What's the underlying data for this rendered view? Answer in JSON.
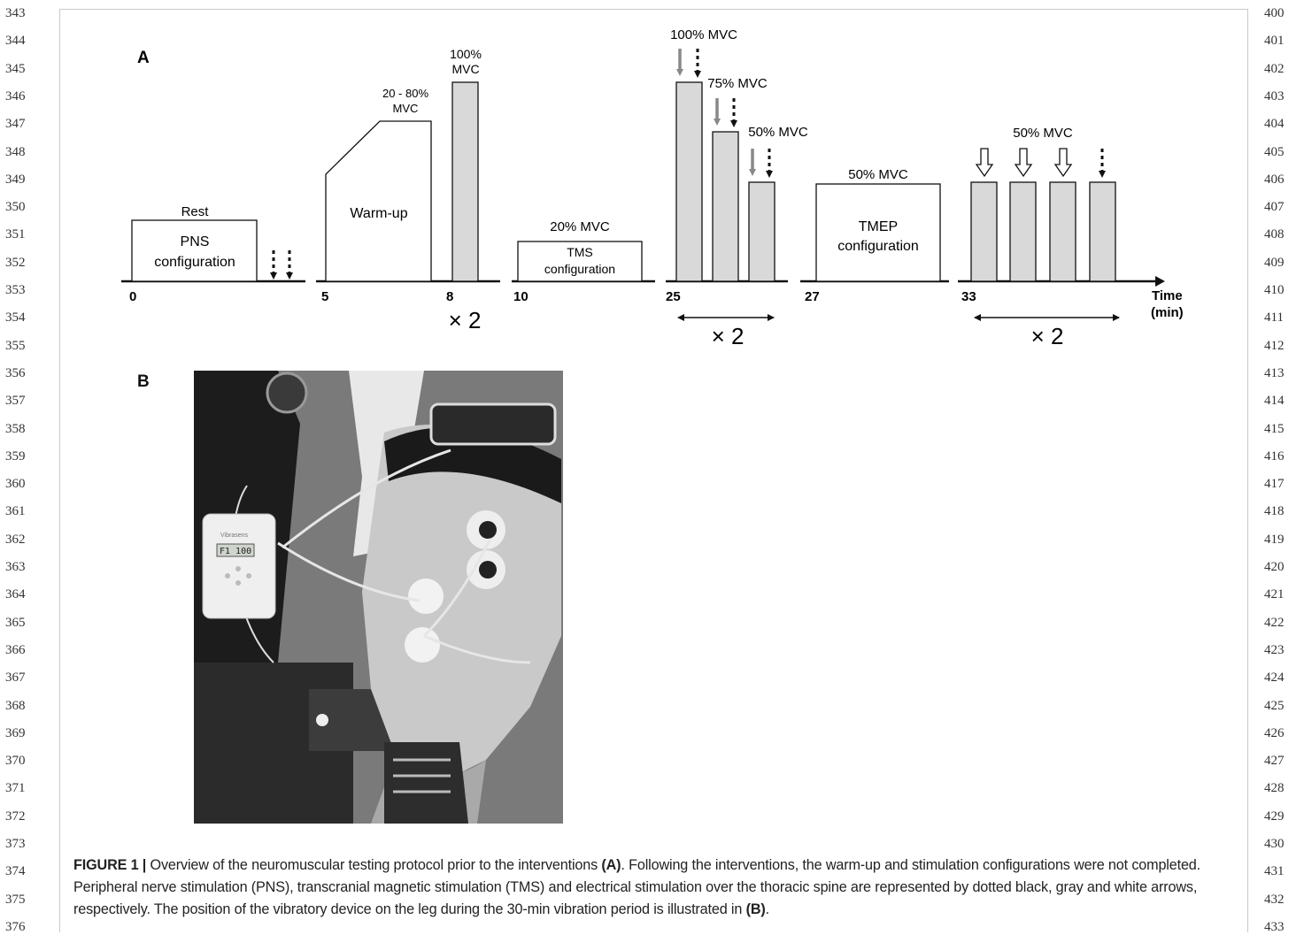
{
  "line_numbers": {
    "left": [
      "343",
      "344",
      "345",
      "346",
      "347",
      "348",
      "349",
      "350",
      "351",
      "352",
      "353",
      "354",
      "355",
      "356",
      "357",
      "358",
      "359",
      "360",
      "361",
      "362",
      "363",
      "364",
      "365",
      "366",
      "367",
      "368",
      "369",
      "370",
      "371",
      "372",
      "373",
      "374",
      "375",
      "376"
    ],
    "right": [
      "400",
      "401",
      "402",
      "403",
      "404",
      "405",
      "406",
      "407",
      "408",
      "409",
      "410",
      "411",
      "412",
      "413",
      "414",
      "415",
      "416",
      "417",
      "418",
      "419",
      "420",
      "421",
      "422",
      "423",
      "424",
      "425",
      "426",
      "427",
      "428",
      "429",
      "430",
      "431",
      "432",
      "433"
    ]
  },
  "panel_a": {
    "label": "A",
    "axis": {
      "ticks": [
        "0",
        "5",
        "8",
        "10",
        "25",
        "27",
        "33"
      ],
      "title_line1": "Time",
      "title_line2": "(min)"
    },
    "rest": {
      "label": "Rest",
      "box_line1": "PNS",
      "box_line2": "configuration"
    },
    "warmup": {
      "box": "Warm-up",
      "label_line1": "20 - 80%",
      "label_line2": "MVC"
    },
    "mvc100": {
      "label_line1": "100%",
      "label_line2": "MVC",
      "repeat": "× 2"
    },
    "tms": {
      "label": "20% MVC",
      "box_line1": "TMS",
      "box_line2": "configuration"
    },
    "graded": {
      "l100": "100% MVC",
      "l75": "75% MVC",
      "l50": "50% MVC",
      "repeat": "× 2"
    },
    "tmep": {
      "label": "50% MVC",
      "box_line1": "TMEP",
      "box_line2": "configuration"
    },
    "final": {
      "label": "50% MVC",
      "repeat": "× 2"
    },
    "colors": {
      "bar_fill": "#d9d9d9",
      "gray_arrow": "#888888",
      "black": "#111111"
    }
  },
  "panel_b": {
    "label": "B",
    "device_display": "F1 100",
    "device_brand": "Vibrasens"
  },
  "caption": {
    "prefix": "FIGURE 1 | ",
    "t1": "Overview of the neuromuscular testing protocol prior to the interventions ",
    "ref_a": "(A)",
    "t2": ". Following the interventions, the warm-up and stimulation configurations were not completed. Peripheral nerve stimulation (PNS), transcranial magnetic stimulation (TMS) and electrical stimulation over the thoracic spine are represented by dotted black, gray and white arrows, respectively. The position of the vibratory device on the leg during the 30-min vibration period is illustrated in ",
    "ref_b": "(B)",
    "t3": "."
  }
}
